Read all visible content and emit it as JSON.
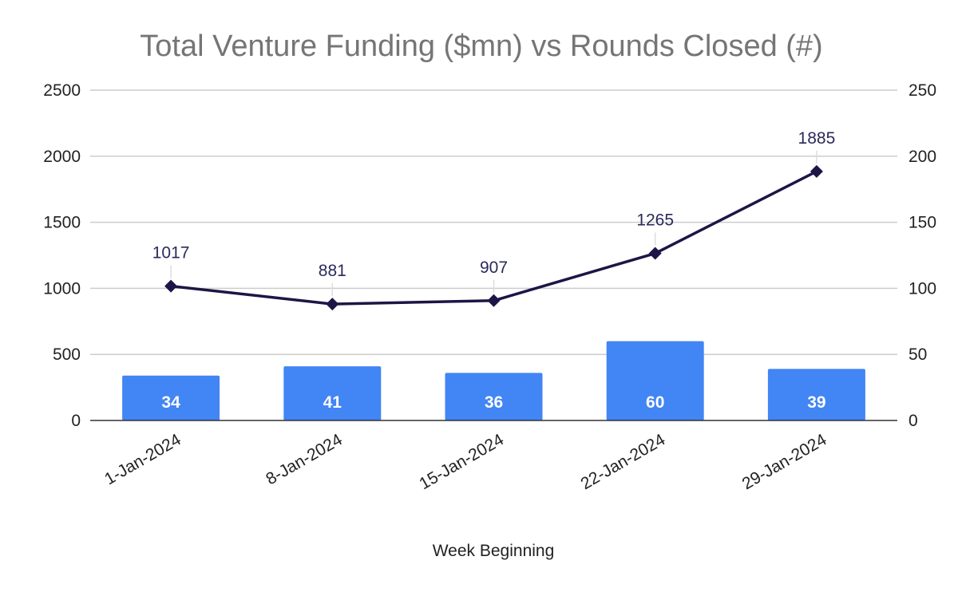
{
  "chart_data": {
    "type": "bar+line",
    "title": "Total Venture Funding ($mn) vs Rounds Closed (#)",
    "xlabel": "Week Beginning",
    "categories": [
      "1-Jan-2024",
      "8-Jan-2024",
      "15-Jan-2024",
      "22-Jan-2024",
      "29-Jan-2024"
    ],
    "series": [
      {
        "type": "bar",
        "axis": "right",
        "values": [
          34,
          41,
          36,
          60,
          39
        ],
        "color": "#4285f4"
      },
      {
        "type": "line",
        "axis": "left",
        "values": [
          1017,
          881,
          907,
          1265,
          1885
        ],
        "color": "#1c1646",
        "marker": "diamond"
      }
    ],
    "y_left": {
      "min": 0,
      "max": 2500,
      "ticks": [
        0,
        500,
        1000,
        1500,
        2000,
        2500
      ]
    },
    "y_right": {
      "min": 0,
      "max": 250,
      "ticks": [
        0,
        50,
        100,
        150,
        200,
        250
      ]
    },
    "grid": true,
    "legend": "none"
  }
}
